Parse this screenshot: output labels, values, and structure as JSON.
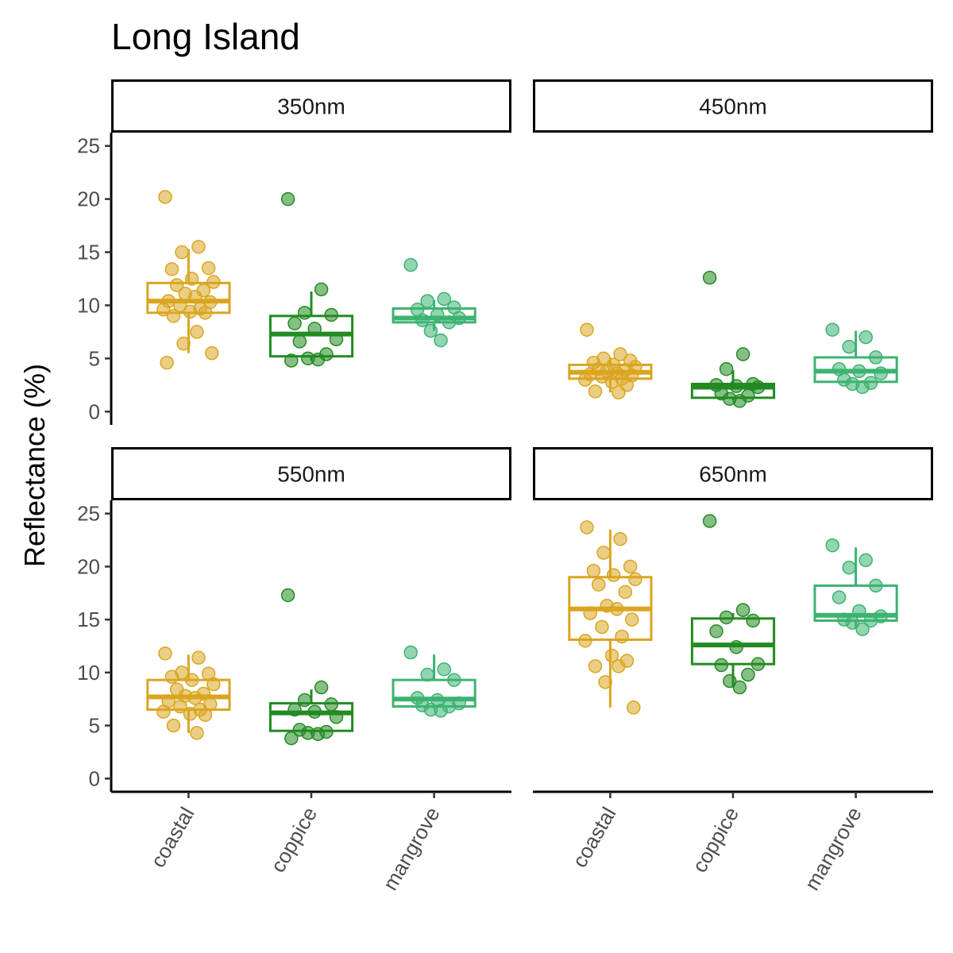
{
  "chart_data": {
    "type": "box",
    "title": "Long Island",
    "ylabel": "Reflectance (%)",
    "xlabel": "",
    "ylim": [
      0,
      25
    ],
    "y_ticks": [
      0,
      5,
      10,
      15,
      20,
      25
    ],
    "categories": [
      "coastal",
      "coppice",
      "mangrove"
    ],
    "colors": {
      "coastal": "#DAA520",
      "coppice": "#228B22",
      "mangrove": "#3CB371"
    },
    "grid": false,
    "legend": "none",
    "panels": [
      {
        "label": "350nm",
        "boxes": [
          {
            "category": "coastal",
            "min": 5.5,
            "q1": 9.3,
            "median": 10.4,
            "q3": 12.1,
            "max": 15.3,
            "points": [
              20.2,
              15.5,
              15.0,
              13.5,
              13.4,
              12.5,
              12.2,
              11.9,
              11.4,
              11.1,
              10.8,
              10.4,
              10.3,
              10.0,
              9.7,
              9.6,
              9.4,
              9.3,
              9.0,
              7.5,
              6.4,
              5.5,
              4.6
            ]
          },
          {
            "category": "coppice",
            "min": 4.8,
            "q1": 5.2,
            "median": 7.3,
            "q3": 9.0,
            "max": 11.3,
            "points": [
              20.0,
              11.5,
              9.3,
              9.1,
              8.3,
              7.8,
              6.8,
              6.6,
              5.4,
              5.0,
              4.9,
              4.8
            ]
          },
          {
            "category": "mangrove",
            "min": 7.6,
            "q1": 8.4,
            "median": 8.8,
            "q3": 9.7,
            "max": 10.5,
            "points": [
              13.8,
              10.6,
              10.4,
              9.8,
              9.6,
              9.1,
              8.8,
              8.6,
              8.4,
              7.6,
              6.7
            ]
          }
        ]
      },
      {
        "label": "450nm",
        "boxes": [
          {
            "category": "coastal",
            "min": 1.8,
            "q1": 3.1,
            "median": 3.7,
            "q3": 4.4,
            "max": 5.1,
            "points": [
              7.7,
              5.4,
              5.0,
              4.8,
              4.6,
              4.4,
              4.2,
              4.0,
              3.9,
              3.8,
              3.6,
              3.5,
              3.4,
              3.3,
              3.1,
              3.0,
              2.8,
              2.5,
              1.9,
              1.8
            ]
          },
          {
            "category": "coppice",
            "min": 1.1,
            "q1": 1.3,
            "median": 2.3,
            "q3": 2.6,
            "max": 3.9,
            "points": [
              12.6,
              5.4,
              4.0,
              2.6,
              2.5,
              2.4,
              2.3,
              1.7,
              1.5,
              1.2,
              1.0
            ]
          },
          {
            "category": "mangrove",
            "min": 2.7,
            "q1": 2.8,
            "median": 3.8,
            "q3": 5.1,
            "max": 7.6,
            "points": [
              7.7,
              7.0,
              6.1,
              5.1,
              4.0,
              3.8,
              3.6,
              3.0,
              2.7,
              2.6,
              2.3
            ]
          }
        ]
      },
      {
        "label": "550nm",
        "boxes": [
          {
            "category": "coastal",
            "min": 4.3,
            "q1": 6.5,
            "median": 7.7,
            "q3": 9.3,
            "max": 11.7,
            "points": [
              11.8,
              11.4,
              10.0,
              9.9,
              9.6,
              9.3,
              8.9,
              8.4,
              8.0,
              7.8,
              7.6,
              7.3,
              7.0,
              6.8,
              6.5,
              6.3,
              6.1,
              6.0,
              5.0,
              4.3
            ]
          },
          {
            "category": "coppice",
            "min": 4.2,
            "q1": 4.5,
            "median": 6.2,
            "q3": 7.1,
            "max": 8.4,
            "points": [
              17.3,
              8.6,
              7.4,
              7.0,
              6.5,
              6.3,
              5.8,
              4.6,
              4.4,
              4.3,
              4.2,
              3.8
            ]
          },
          {
            "category": "mangrove",
            "min": 6.6,
            "q1": 6.8,
            "median": 7.5,
            "q3": 9.3,
            "max": 11.7,
            "points": [
              11.9,
              10.3,
              9.8,
              9.3,
              7.6,
              7.4,
              7.1,
              6.9,
              6.8,
              6.5,
              6.4
            ]
          }
        ]
      },
      {
        "label": "650nm",
        "boxes": [
          {
            "category": "coastal",
            "min": 6.7,
            "q1": 13.1,
            "median": 16.0,
            "q3": 19.0,
            "max": 23.5,
            "points": [
              23.7,
              22.6,
              21.3,
              20.0,
              19.6,
              19.2,
              18.8,
              18.3,
              17.6,
              16.3,
              16.0,
              15.6,
              15.0,
              14.3,
              13.4,
              13.0,
              11.6,
              11.1,
              10.6,
              10.6,
              9.1,
              6.7
            ]
          },
          {
            "category": "coppice",
            "min": 8.6,
            "q1": 10.8,
            "median": 12.6,
            "q3": 15.1,
            "max": 15.6,
            "points": [
              24.3,
              15.9,
              15.2,
              14.9,
              13.9,
              12.4,
              10.8,
              10.7,
              9.8,
              9.2,
              8.6
            ]
          },
          {
            "category": "mangrove",
            "min": 14.2,
            "q1": 14.9,
            "median": 15.4,
            "q3": 18.2,
            "max": 21.8,
            "points": [
              22.0,
              20.6,
              19.9,
              18.2,
              17.1,
              15.8,
              15.3,
              15.0,
              14.9,
              14.7,
              14.1
            ]
          }
        ]
      }
    ]
  }
}
